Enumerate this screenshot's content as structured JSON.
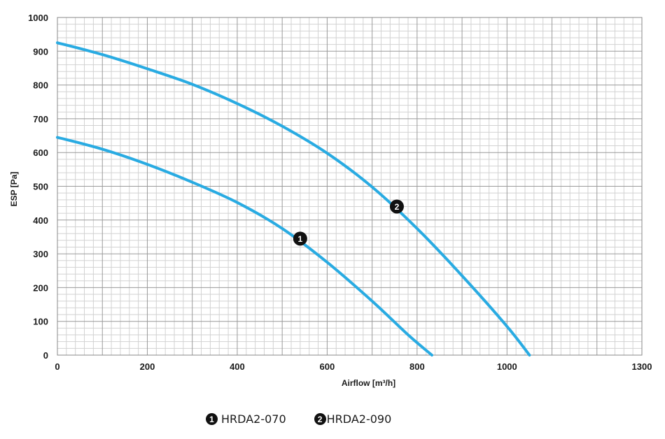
{
  "chart_data": {
    "type": "line",
    "title": "",
    "xlabel": "Airflow [m³/h]",
    "ylabel": "ESP  [Pa]",
    "xlim": [
      0,
      1300
    ],
    "ylim": [
      0,
      1000
    ],
    "x_ticks": [
      0,
      200,
      400,
      600,
      800,
      1000,
      1300
    ],
    "y_ticks": [
      0,
      100,
      200,
      300,
      400,
      500,
      600,
      700,
      800,
      900,
      1000
    ],
    "grid": true,
    "line_color": "#29ABE2",
    "series": [
      {
        "name": "HRDA2-070",
        "marker": "1",
        "marker_at": [
          540,
          345
        ],
        "points": [
          [
            0,
            645
          ],
          [
            100,
            610
          ],
          [
            200,
            565
          ],
          [
            300,
            512
          ],
          [
            400,
            452
          ],
          [
            500,
            375
          ],
          [
            600,
            275
          ],
          [
            700,
            160
          ],
          [
            780,
            60
          ],
          [
            833,
            0
          ]
        ]
      },
      {
        "name": "HRDA2-090",
        "marker": "2",
        "marker_at": [
          755,
          440
        ],
        "points": [
          [
            0,
            925
          ],
          [
            100,
            890
          ],
          [
            200,
            848
          ],
          [
            300,
            802
          ],
          [
            400,
            745
          ],
          [
            500,
            678
          ],
          [
            600,
            598
          ],
          [
            700,
            498
          ],
          [
            800,
            375
          ],
          [
            900,
            235
          ],
          [
            1000,
            85
          ],
          [
            1050,
            0
          ]
        ]
      }
    ],
    "legend": {
      "placement": "bottom-center",
      "items": [
        {
          "badge": "1",
          "label": "HRDA2-070"
        },
        {
          "badge": "2",
          "label": "HRDA2-090"
        }
      ]
    }
  }
}
